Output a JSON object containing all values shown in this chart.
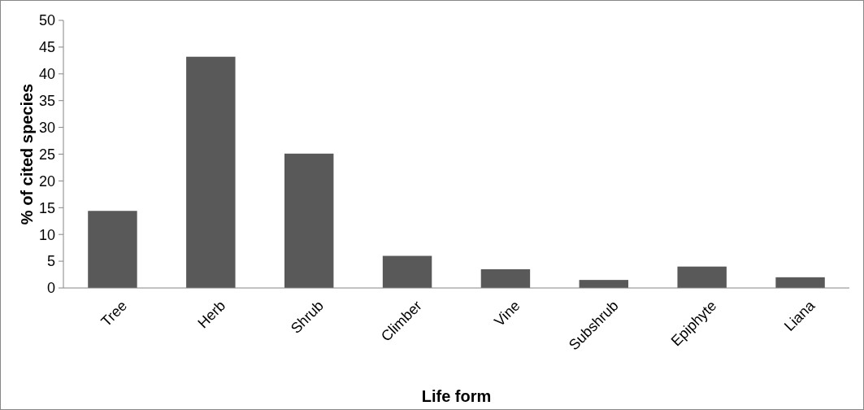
{
  "chart_data": {
    "type": "bar",
    "xlabel": "Life form",
    "ylabel": "% of cited species",
    "categories": [
      "Tree",
      "Herb",
      "Shrub",
      "Climber",
      "Vine",
      "Subshrub",
      "Epiphyte",
      "Liana"
    ],
    "values": [
      14.4,
      43.2,
      25.1,
      6.0,
      3.5,
      1.5,
      4.0,
      2.0
    ],
    "color": "#595959",
    "ylim": [
      0,
      50
    ],
    "yticks": [
      0,
      5,
      10,
      15,
      20,
      25,
      30,
      35,
      40,
      45,
      50
    ],
    "grid": false
  }
}
